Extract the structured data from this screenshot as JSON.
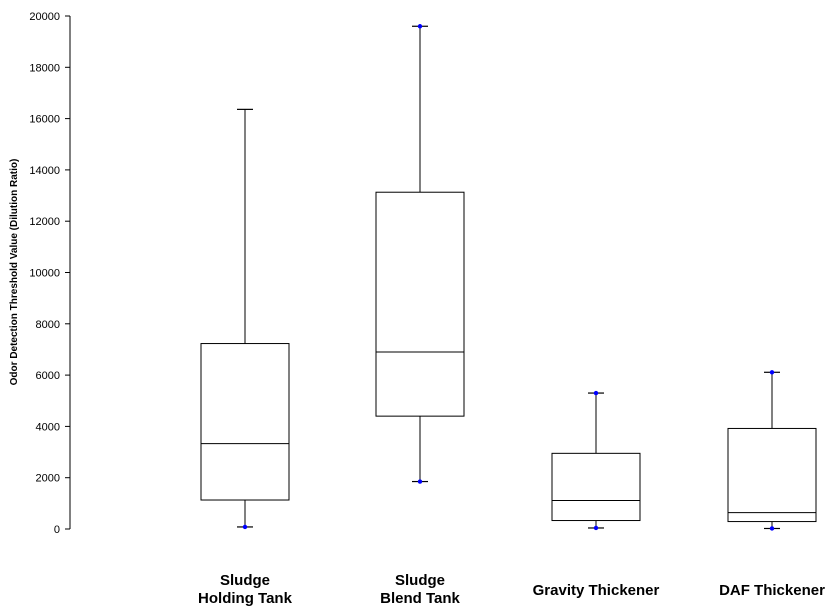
{
  "chart_data": {
    "type": "boxplot",
    "title": "",
    "xlabel": "",
    "ylabel": "Odor Detection Threshold Value (Dilution Ratio)",
    "ylim": [
      0,
      20000
    ],
    "yticks": [
      0,
      2000,
      4000,
      6000,
      8000,
      10000,
      12000,
      14000,
      16000,
      18000,
      20000
    ],
    "ytick_labels": [
      "0",
      "2000",
      "4000",
      "6000",
      "8000",
      "10000",
      "12000",
      "14000",
      "16000",
      "18000",
      "20000"
    ],
    "grid": false,
    "marker_color": "#0000ff",
    "categories": [
      {
        "label_lines": [
          "Sludge",
          "Holding Tank"
        ],
        "min": 80,
        "q1": 1130,
        "median": 3330,
        "q3": 7230,
        "max": 16360,
        "min_marker": true,
        "max_marker": false
      },
      {
        "label_lines": [
          "Sludge",
          "Blend Tank"
        ],
        "min": 1850,
        "q1": 4400,
        "median": 6900,
        "q3": 13130,
        "max": 19600,
        "min_marker": true,
        "max_marker": true
      },
      {
        "label_lines": [
          "Gravity Thickener"
        ],
        "min": 40,
        "q1": 330,
        "median": 1110,
        "q3": 2950,
        "max": 5300,
        "min_marker": true,
        "max_marker": true
      },
      {
        "label_lines": [
          "DAF Thickener"
        ],
        "min": 20,
        "q1": 290,
        "median": 640,
        "q3": 3920,
        "max": 6110,
        "min_marker": true,
        "max_marker": true
      }
    ]
  }
}
